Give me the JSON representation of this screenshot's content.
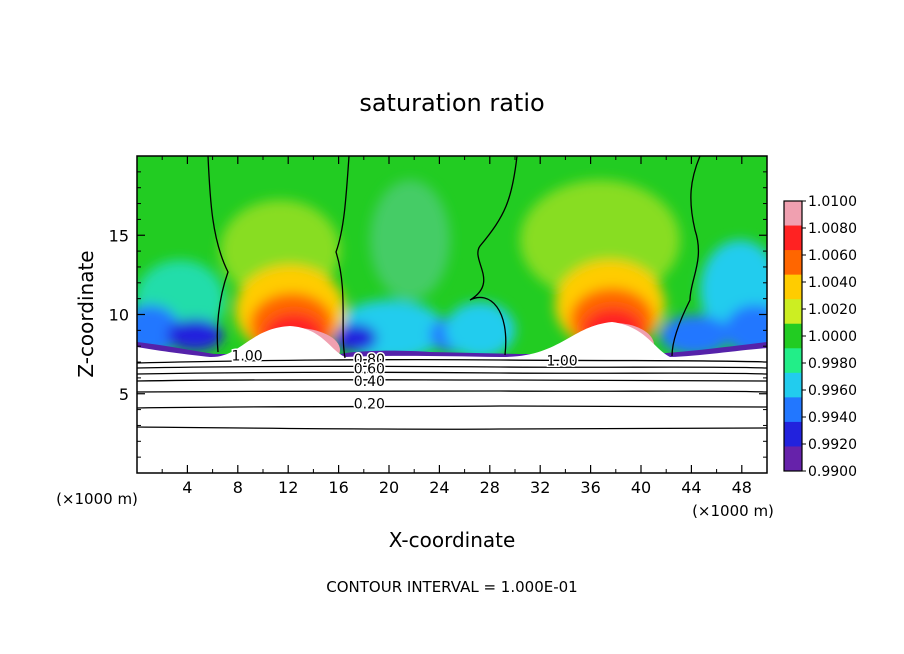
{
  "chart_data": {
    "type": "heatmap",
    "title": "saturation ratio",
    "xlabel": "X-coordinate",
    "ylabel": "Z-coordinate",
    "x_unit": "(×1000 m)",
    "z_unit": "(×1000 m)",
    "xlim": [
      0,
      50
    ],
    "ylim": [
      0,
      20
    ],
    "x_ticks": [
      "4",
      "8",
      "12",
      "16",
      "20",
      "24",
      "28",
      "32",
      "36",
      "40",
      "44",
      "48"
    ],
    "y_ticks": [
      "5",
      "10",
      "15"
    ],
    "x_tick_values": [
      4,
      8,
      12,
      16,
      20,
      24,
      28,
      32,
      36,
      40,
      44,
      48
    ],
    "y_tick_values": [
      5,
      10,
      15
    ],
    "colorbar": {
      "min": 0.99,
      "max": 1.01,
      "labels": [
        "1.0100",
        "1.0080",
        "1.0060",
        "1.0040",
        "1.0020",
        "1.0000",
        "0.9980",
        "0.9960",
        "0.9940",
        "0.9920",
        "0.9900"
      ],
      "colors": [
        "#f0a0b0",
        "#ff2222",
        "#ff6600",
        "#ffcc00",
        "#ccee22",
        "#22cc22",
        "#22ee88",
        "#22ccee",
        "#2277ff",
        "#2222dd",
        "#6622aa"
      ]
    },
    "contour_levels": [
      {
        "label": "1.00",
        "x": 7.5,
        "z": 7.4
      },
      {
        "label": "0.80",
        "x": 17.2,
        "z": 7.2
      },
      {
        "label": "0.60",
        "x": 17.2,
        "z": 6.6
      },
      {
        "label": "0.40",
        "x": 17.2,
        "z": 5.8
      },
      {
        "label": "0.20",
        "x": 17.2,
        "z": 4.4
      },
      {
        "label": "1.00",
        "x": 32.5,
        "z": 7.1
      }
    ],
    "annotation": "CONTOUR INTERVAL = 1.000E-01"
  }
}
